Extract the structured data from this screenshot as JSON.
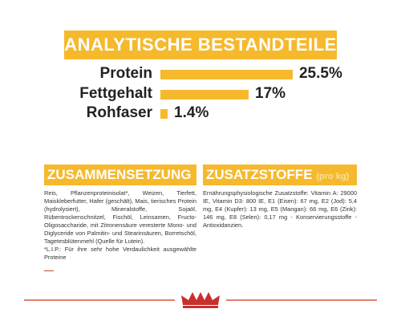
{
  "chart_data": {
    "type": "bar",
    "title": "ANALYTISCHE BESTANDTEILE",
    "categories": [
      "Protein",
      "Fettgehalt",
      "Rohfaser"
    ],
    "values": [
      25.5,
      17,
      1.4
    ],
    "value_labels": [
      "25.5%",
      "17%",
      "1.4%"
    ],
    "color": "#f6b92d"
  },
  "composition": {
    "heading": "ZUSAMMENSETZUNG",
    "text": "Reis, Pflanzenproteinisolat*, Weizen, Tierfett, Maiskleberfutter, Hafer (geschält), Mais, tierisches Protein (hydrolysiert), Mineralstoffe, Sojaöl, Rübentrockenschnitzel, Fischöl, Leinsamen, Fructo-Oligosaccharide, mit Zitronensäure veresterte Mono- und Diglyceride von Palmitin- und Stearinsäuren, Borretschöl, Tagetesblütenmehl (Quelle für Lutein).",
    "note": "*L.I.P.: Für ihre sehr hohe Verdaulichkeit ausgewählte Proteine"
  },
  "additives": {
    "heading": "ZUSATZSTOFFE",
    "heading_suffix": "(pro kg)",
    "text": "Ernährungsphysiologische Zusatzstoffe: Vitamin A: 29000 IE, Vitamin D3: 800 IE, E1 (Eisen): 67 mg, E2 (Jod): 5,4 mg, E4 (Kupfer): 13 mg, E5 (Mangan): 66 mg, E6 (Zink): 146 mg, E8 (Selen): 0,17 mg - Konservierungsstoffe - Antioxidanzien."
  }
}
